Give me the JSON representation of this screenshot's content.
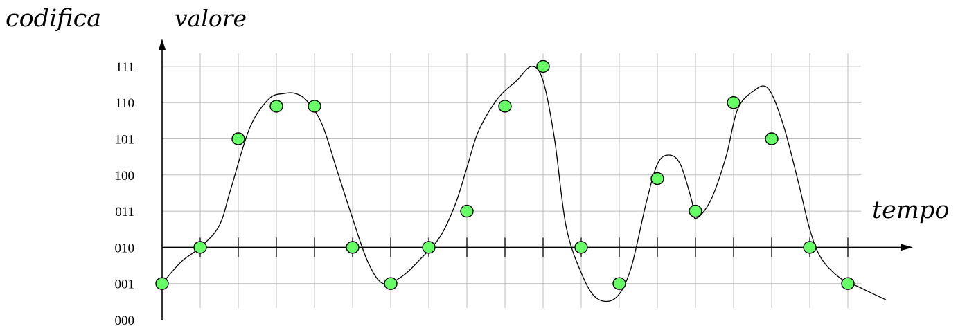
{
  "chart_data": {
    "type": "scatter",
    "title": "",
    "ylabel_left": "codifica",
    "ylabel": "valore",
    "xlabel": "tempo",
    "y_tick_labels": [
      "000",
      "001",
      "010",
      "011",
      "100",
      "101",
      "110",
      "111"
    ],
    "ylim": [
      0,
      7
    ],
    "x_axis_at_y": 2,
    "grid": true,
    "samples": {
      "x": [
        0,
        1,
        2,
        3,
        4,
        5,
        6,
        7,
        8,
        9,
        10,
        11,
        12,
        13,
        14,
        15,
        16,
        17,
        18
      ],
      "y": [
        1,
        2,
        5,
        5.9,
        5.9,
        2,
        1,
        2,
        3,
        5.9,
        7,
        2,
        1,
        3.9,
        3,
        6,
        5,
        2,
        1
      ]
    },
    "curve": {
      "x": [
        0,
        0.5,
        1,
        1.5,
        1.8,
        2.3,
        2.8,
        3.2,
        3.5,
        3.8,
        4.2,
        4.6,
        5,
        5.4,
        5.8,
        6.3,
        6.8,
        7.3,
        7.7,
        8,
        8.3,
        8.8,
        9.3,
        9.7,
        10,
        10.3,
        10.6,
        11,
        11.4,
        11.9,
        12.3,
        12.7,
        13,
        13.3,
        13.6,
        13.9,
        14,
        14.4,
        14.8,
        15.1,
        15.5,
        15.9,
        16.3,
        16.7,
        17,
        17.3,
        17.8,
        18.3,
        19
      ],
      "y": [
        1,
        1.6,
        2,
        2.6,
        3.6,
        5.3,
        6.1,
        6.25,
        6.25,
        6.05,
        5.4,
        4.1,
        2.8,
        1.6,
        1,
        1.2,
        1.7,
        2.3,
        3.2,
        4.2,
        5.2,
        6.1,
        6.6,
        7,
        6.6,
        5,
        2.6,
        1.3,
        0.6,
        0.6,
        1.4,
        3.2,
        4.3,
        4.55,
        4.3,
        3.3,
        2.8,
        3.3,
        4.5,
        5.8,
        6.3,
        6.4,
        5.4,
        3.8,
        2.5,
        1.7,
        1.15,
        0.9,
        0.55
      ]
    }
  }
}
